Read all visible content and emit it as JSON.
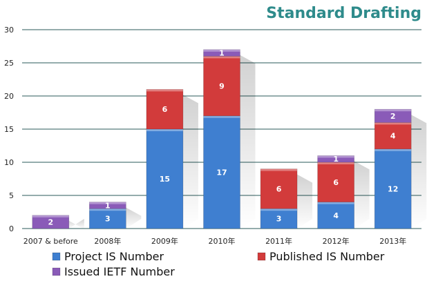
{
  "chart_data": {
    "type": "bar",
    "stacked": true,
    "title": "Standard Drafting",
    "categories": [
      "2007 & before",
      "2008年",
      "2009年",
      "2010年",
      "2011年",
      "2012年",
      "2013年"
    ],
    "series": [
      {
        "name": "Project IS Number",
        "values": [
          0,
          3,
          15,
          17,
          3,
          4,
          12
        ],
        "color": "#3f7fd0"
      },
      {
        "name": "Published IS Number",
        "values": [
          0,
          0,
          6,
          9,
          6,
          6,
          4
        ],
        "color": "#d23b3b"
      },
      {
        "name": "Issued IETF Number",
        "values": [
          2,
          1,
          0,
          1,
          0,
          1,
          2
        ],
        "color": "#8a5bb8"
      }
    ],
    "ylim": [
      0,
      30
    ],
    "yticks": [
      0,
      5,
      10,
      15,
      20,
      25,
      30
    ],
    "grid": true,
    "legend_position": "bottom",
    "title_color": "#2e8b8b",
    "grid_color": "#2a5a5a"
  }
}
